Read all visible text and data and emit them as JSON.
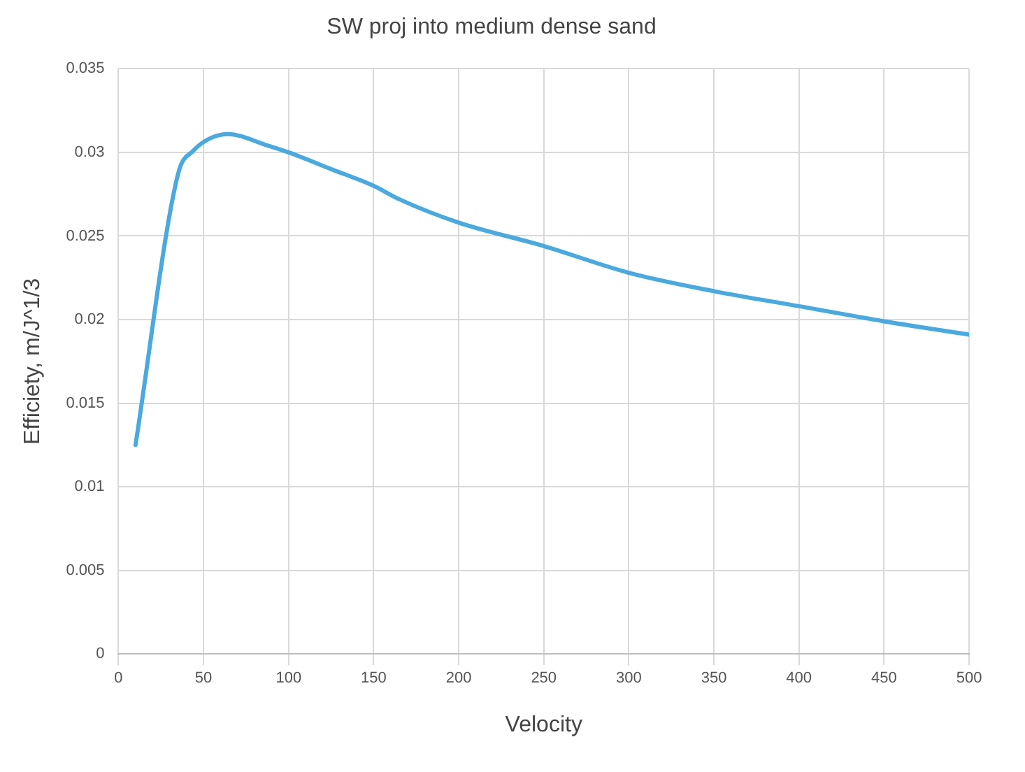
{
  "chart_data": {
    "type": "line",
    "title": "SW proj into medium dense sand",
    "xlabel": "Velocity",
    "ylabel": "Efficiety, m/J^1/3",
    "x": [
      10,
      35,
      44,
      53,
      64,
      88,
      100,
      125,
      150,
      165,
      200,
      250,
      300,
      350,
      400,
      450,
      500
    ],
    "series": [
      {
        "color": "#4aa9df",
        "values": [
          0.0125,
          0.0287,
          0.0301,
          0.0308,
          0.0311,
          0.0304,
          0.03,
          0.029,
          0.028,
          0.0272,
          0.0258,
          0.0244,
          0.0228,
          0.0217,
          0.0208,
          0.0199,
          0.0191
        ]
      }
    ],
    "xlim": [
      0,
      500
    ],
    "xticks": [
      0,
      50,
      100,
      150,
      200,
      250,
      300,
      350,
      400,
      450,
      500
    ],
    "ylim": [
      0,
      0.035
    ],
    "yticks": [
      0,
      0.005,
      0.01,
      0.015,
      0.02,
      0.025,
      0.03,
      0.035
    ],
    "grid": true,
    "legend": false,
    "marker": "none",
    "line_style": "solid"
  }
}
